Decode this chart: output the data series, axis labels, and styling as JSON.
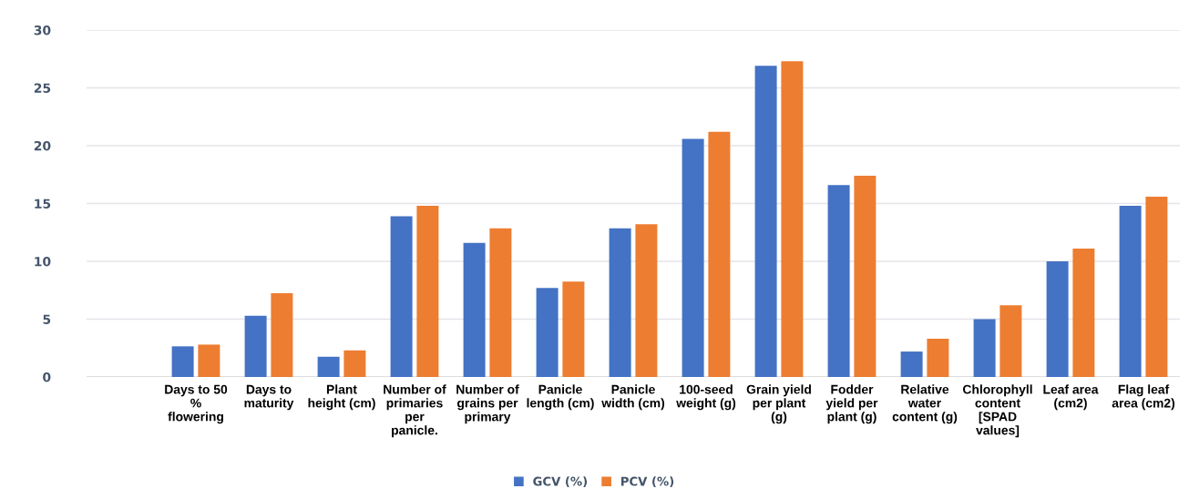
{
  "chart_data": {
    "type": "bar",
    "categories": [
      null,
      "Days to 50\n%\nflowering",
      "Days to\nmaturity",
      "Plant\nheight (cm)",
      "Number of\nprimaries\nper\npanicle.",
      "Number of\ngrains per\nprimary",
      "Panicle\nlength (cm)",
      "Panicle\nwidth (cm)",
      "100-seed\nweight (g)",
      "Grain yield\nper plant\n(g)",
      "Fodder\nyield per\nplant (g)",
      "Relative\nwater\ncontent (g)",
      "Chlorophyll\ncontent\n[SPAD\nvalues]",
      "Leaf area\n(cm2)",
      "Flag leaf\narea (cm2)"
    ],
    "series": [
      {
        "name": "GCV (%)",
        "color": "#4472c4",
        "values": [
          null,
          2.65,
          5.3,
          1.75,
          13.9,
          11.6,
          7.7,
          12.85,
          20.6,
          26.9,
          16.6,
          2.2,
          5.0,
          10.0,
          14.8
        ]
      },
      {
        "name": "PCV (%)",
        "color": "#ed7d31",
        "values": [
          null,
          2.8,
          7.25,
          2.3,
          14.8,
          12.85,
          8.25,
          13.2,
          21.2,
          27.3,
          17.4,
          3.3,
          6.2,
          11.1,
          15.6
        ]
      }
    ],
    "ylim": [
      0,
      30
    ],
    "yticks": [
      0,
      5,
      10,
      15,
      20,
      25,
      30
    ],
    "grid": "y",
    "legend": "bottom"
  }
}
